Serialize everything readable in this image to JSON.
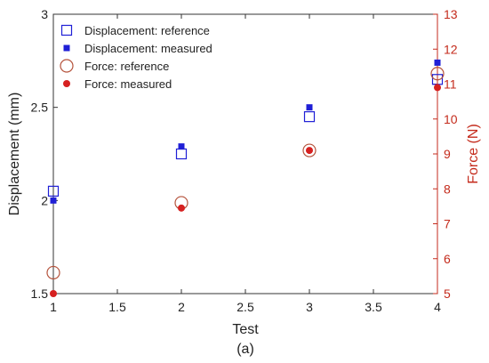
{
  "caption": "(a)",
  "chart_data": {
    "type": "scatter",
    "xlabel": "Test",
    "ylabel_left": "Displacement (mm)",
    "ylabel_right": "Force (N)",
    "xlim": [
      1,
      4
    ],
    "ylim_left": [
      1.5,
      3
    ],
    "ylim_right": [
      5,
      13
    ],
    "x_ticks": [
      "1",
      "1.5",
      "2",
      "2.5",
      "3",
      "3.5",
      "4"
    ],
    "y_left_ticks": [
      "1.5",
      "2",
      "2.5",
      "3"
    ],
    "y_right_ticks": [
      "5",
      "6",
      "7",
      "8",
      "9",
      "10",
      "11",
      "12",
      "13"
    ],
    "grid": false,
    "legend_position": "top-left",
    "colors": {
      "displacement": "#1f1fd6",
      "force_reference": "#b5533c",
      "force_measured": "#d62020",
      "right_axis": "#c42b1c"
    },
    "series": [
      {
        "name": "Displacement: reference",
        "axis": "left",
        "marker": "open-square",
        "x": [
          1,
          2,
          3,
          4
        ],
        "y": [
          2.05,
          2.25,
          2.45,
          2.65
        ]
      },
      {
        "name": "Displacement: measured",
        "axis": "left",
        "marker": "filled-square",
        "x": [
          1,
          2,
          3,
          4
        ],
        "y": [
          2.0,
          2.29,
          2.5,
          2.74
        ]
      },
      {
        "name": "Force: reference",
        "axis": "right",
        "marker": "open-circle",
        "x": [
          1,
          2,
          3,
          4
        ],
        "y": [
          5.6,
          7.6,
          9.1,
          11.3
        ]
      },
      {
        "name": "Force: measured",
        "axis": "right",
        "marker": "filled-circle",
        "x": [
          1,
          2,
          3,
          4
        ],
        "y": [
          5.0,
          7.45,
          9.1,
          10.9
        ]
      }
    ]
  }
}
